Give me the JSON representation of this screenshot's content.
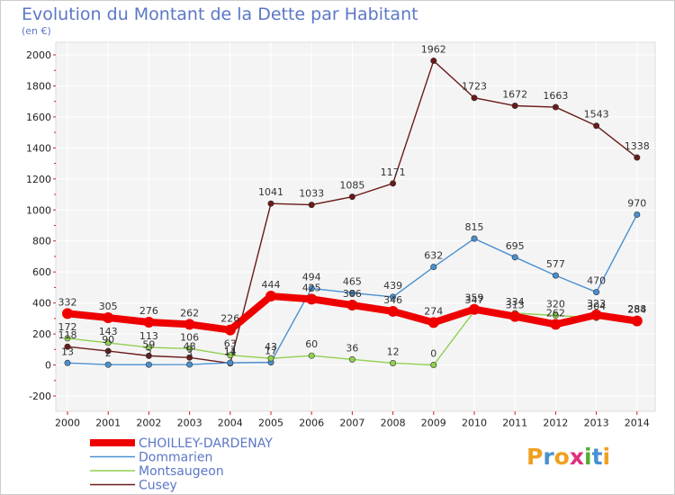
{
  "title": "Evolution du Montant de la Dette par Habitant",
  "subtitle": "(en €)",
  "chart_data": {
    "type": "line",
    "x": [
      "2000",
      "2001",
      "2002",
      "2003",
      "2004",
      "2005",
      "2006",
      "2007",
      "2008",
      "2009",
      "2010",
      "2011",
      "2012",
      "2013",
      "2014"
    ],
    "ylim": [
      -200,
      2000
    ],
    "yticks": [
      -200,
      0,
      200,
      400,
      600,
      800,
      1000,
      1200,
      1400,
      1600,
      1800,
      2000
    ],
    "grid": true,
    "legend_position": "bottom-left",
    "series": [
      {
        "name": "CHOILLEY-DARDENAY",
        "color": "#ee0000",
        "values": [
          332,
          305,
          276,
          262,
          226,
          444,
          425,
          386,
          346,
          274,
          359,
          313,
          262,
          323,
          284
        ],
        "labels": [
          "332",
          "305",
          "276",
          "262",
          "226",
          "444",
          "425",
          "386",
          "346",
          "274",
          "359",
          "313",
          "262",
          "323",
          "284"
        ]
      },
      {
        "name": "Dommarien",
        "color": "#4a90d0",
        "values": [
          13,
          2,
          2,
          3,
          14,
          17,
          494,
          465,
          439,
          632,
          815,
          695,
          577,
          470,
          970
        ],
        "labels": [
          "13",
          "2",
          "2",
          "3",
          "14",
          "17",
          "494",
          "465",
          "439",
          "632",
          "815",
          "695",
          "577",
          "470",
          "970"
        ]
      },
      {
        "name": "Montsaugeon",
        "color": "#90d050",
        "values": [
          172,
          143,
          113,
          106,
          63,
          43,
          60,
          36,
          12,
          0,
          347,
          334,
          320,
          304,
          288
        ],
        "labels": [
          "172",
          "143",
          "113",
          "106",
          "63",
          "43",
          "60",
          "36",
          "12",
          "0",
          "347",
          "334",
          "320",
          "304",
          "288"
        ]
      },
      {
        "name": "Cusey",
        "color": "#6b1a1a",
        "values": [
          118,
          90,
          59,
          48,
          11,
          1041,
          1033,
          1085,
          1171,
          1962,
          1723,
          1672,
          1663,
          1543,
          1338
        ],
        "labels": [
          "118",
          "90",
          "59",
          "48",
          "11",
          "1041",
          "1033",
          "1085",
          "1171",
          "1962",
          "1723",
          "1672",
          "1663",
          "1543",
          "1338"
        ]
      }
    ]
  },
  "logo": {
    "text": "Proxiti",
    "colors": [
      "#f0a020",
      "#4a90d0",
      "#f0a020",
      "#e0307a",
      "#50b030",
      "#4a90d0",
      "#f0a020"
    ]
  }
}
